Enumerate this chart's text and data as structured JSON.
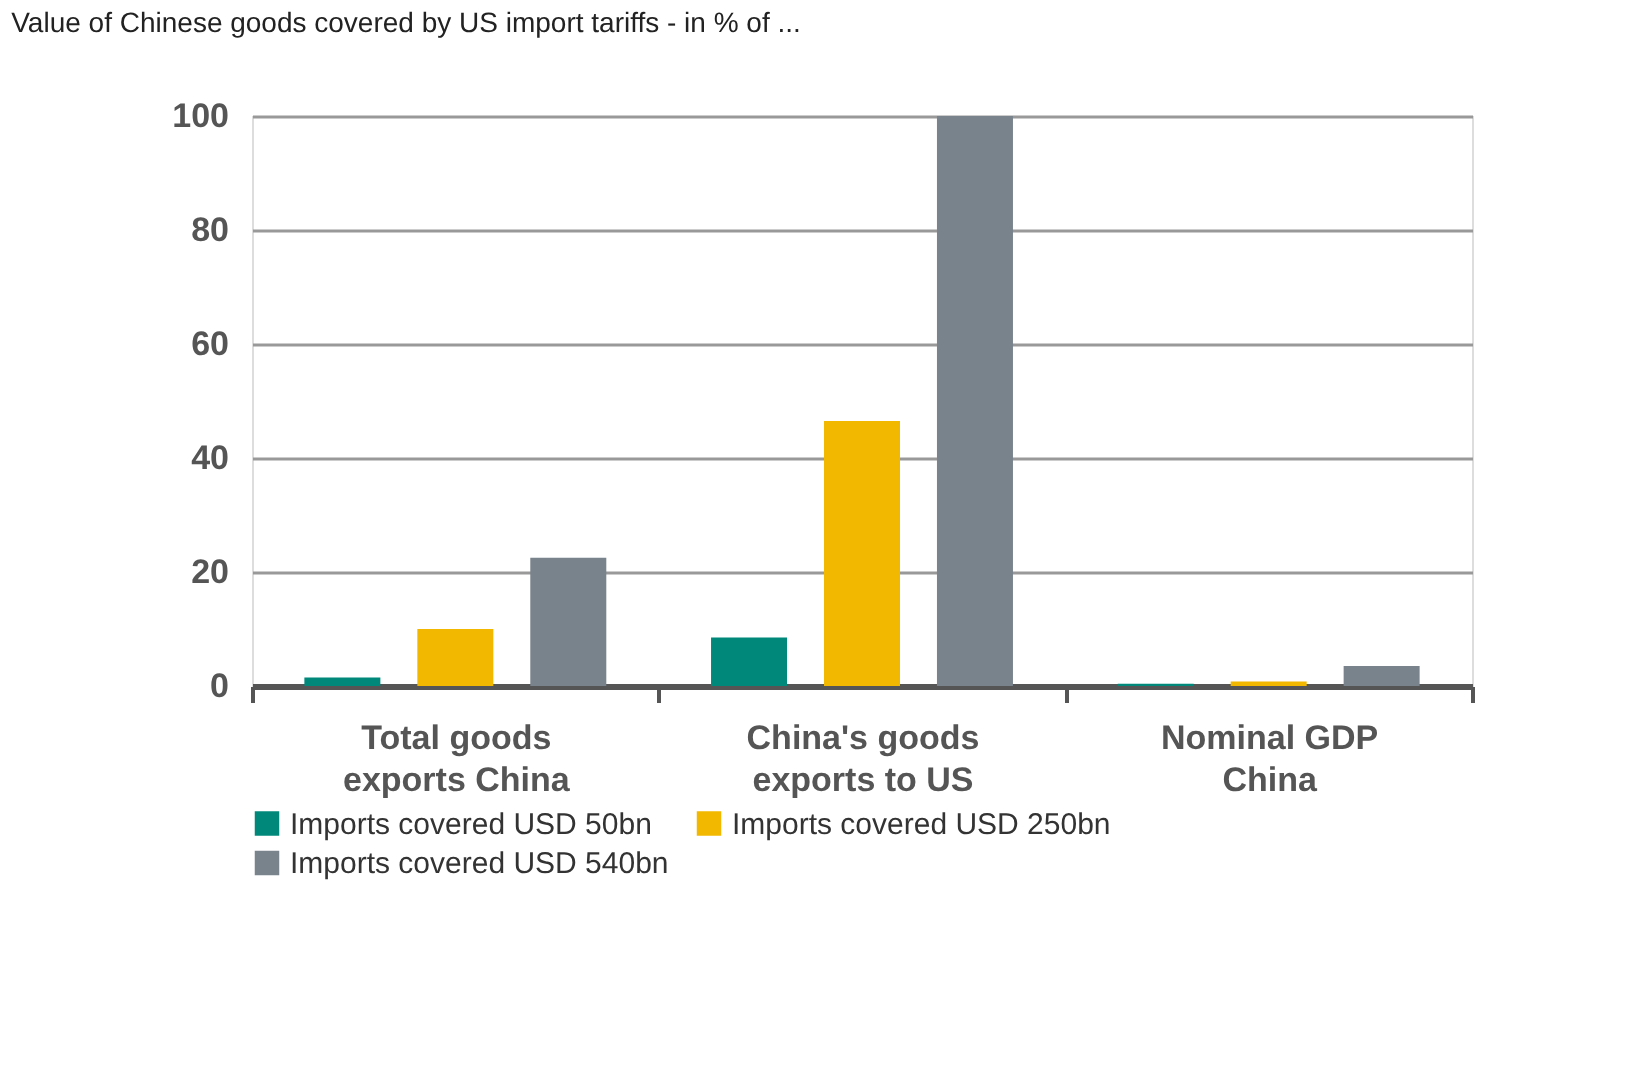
{
  "chart_data": {
    "type": "bar",
    "title": "Value of Chinese goods covered by US import tariffs - in % of ...",
    "categories": [
      "Total goods exports China",
      "China's goods exports to US",
      "Nominal GDP China"
    ],
    "series": [
      {
        "name": "Imports covered USD 50bn",
        "color": "#00897b",
        "values": [
          1.5,
          8.5,
          0.4
        ]
      },
      {
        "name": "Imports covered USD 250bn",
        "color": "#f2b800",
        "values": [
          10,
          46.5,
          0.8
        ]
      },
      {
        "name": "Imports covered USD 540bn",
        "color": "#78838c",
        "values": [
          22.5,
          100,
          3.5
        ]
      }
    ],
    "ylim": [
      0,
      100
    ],
    "yticks": [
      0,
      20,
      40,
      60,
      80,
      100
    ],
    "grid": "y",
    "legend": "bottom"
  }
}
